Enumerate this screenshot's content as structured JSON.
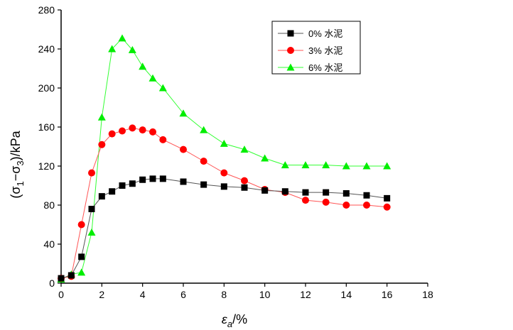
{
  "chart_data": {
    "type": "line",
    "title": "",
    "xlabel": "εa/%",
    "xlabel_main": "ε",
    "xlabel_sub": "a",
    "xlabel_tail": "/%",
    "ylabel": "(σ1−σ3)/kPa",
    "ylabel_open": "(σ",
    "ylabel_sub1": "1",
    "ylabel_mid": "−σ",
    "ylabel_sub2": "3",
    "ylabel_tail": ")/kPa",
    "xlim": [
      0,
      18
    ],
    "ylim": [
      0,
      280
    ],
    "xticks": [
      0,
      2,
      4,
      6,
      8,
      10,
      12,
      14,
      16,
      18
    ],
    "yticks": [
      0,
      40,
      80,
      120,
      160,
      200,
      240,
      280
    ],
    "grid": false,
    "legend_position": "top-right",
    "series": [
      {
        "name": "0% 水泥",
        "marker": "square",
        "color": "#000000",
        "line_color": "#555555",
        "points": [
          [
            0,
            5
          ],
          [
            0.5,
            8
          ],
          [
            1,
            27
          ],
          [
            1.5,
            76
          ],
          [
            2,
            89
          ],
          [
            2.5,
            94
          ],
          [
            3,
            100
          ],
          [
            3.5,
            102
          ],
          [
            4,
            106
          ],
          [
            4.5,
            107
          ],
          [
            5,
            107
          ],
          [
            6,
            104
          ],
          [
            7,
            101
          ],
          [
            8,
            99
          ],
          [
            9,
            98
          ],
          [
            10,
            95
          ],
          [
            11,
            94
          ],
          [
            12,
            93
          ],
          [
            13,
            93
          ],
          [
            14,
            92
          ],
          [
            15,
            90
          ],
          [
            16,
            87
          ]
        ]
      },
      {
        "name": "3% 水泥",
        "marker": "circle",
        "color": "#ff0000",
        "line_color": "#ff5555",
        "points": [
          [
            0,
            5
          ],
          [
            0.5,
            7
          ],
          [
            1,
            60
          ],
          [
            1.5,
            113
          ],
          [
            2,
            142
          ],
          [
            2.5,
            153
          ],
          [
            3,
            156
          ],
          [
            3.5,
            159
          ],
          [
            4,
            157
          ],
          [
            4.5,
            155
          ],
          [
            5,
            147
          ],
          [
            6,
            137
          ],
          [
            7,
            125
          ],
          [
            8,
            113
          ],
          [
            9,
            105
          ],
          [
            10,
            96
          ],
          [
            11,
            93
          ],
          [
            12,
            85
          ],
          [
            13,
            83
          ],
          [
            14,
            80
          ],
          [
            15,
            80
          ],
          [
            16,
            78
          ]
        ]
      },
      {
        "name": "6% 水泥",
        "marker": "triangle",
        "color": "#00ee00",
        "line_color": "#33ff33",
        "points": [
          [
            0,
            4
          ],
          [
            0.5,
            9
          ],
          [
            1,
            11
          ],
          [
            1.5,
            52
          ],
          [
            2,
            170
          ],
          [
            2.5,
            240
          ],
          [
            3,
            251
          ],
          [
            3.5,
            239
          ],
          [
            4,
            222
          ],
          [
            4.5,
            210
          ],
          [
            5,
            200
          ],
          [
            6,
            174
          ],
          [
            7,
            157
          ],
          [
            8,
            143
          ],
          [
            9,
            137
          ],
          [
            10,
            128
          ],
          [
            11,
            121
          ],
          [
            12,
            121
          ],
          [
            13,
            121
          ],
          [
            14,
            120
          ],
          [
            15,
            120
          ],
          [
            16,
            120
          ]
        ]
      }
    ]
  }
}
